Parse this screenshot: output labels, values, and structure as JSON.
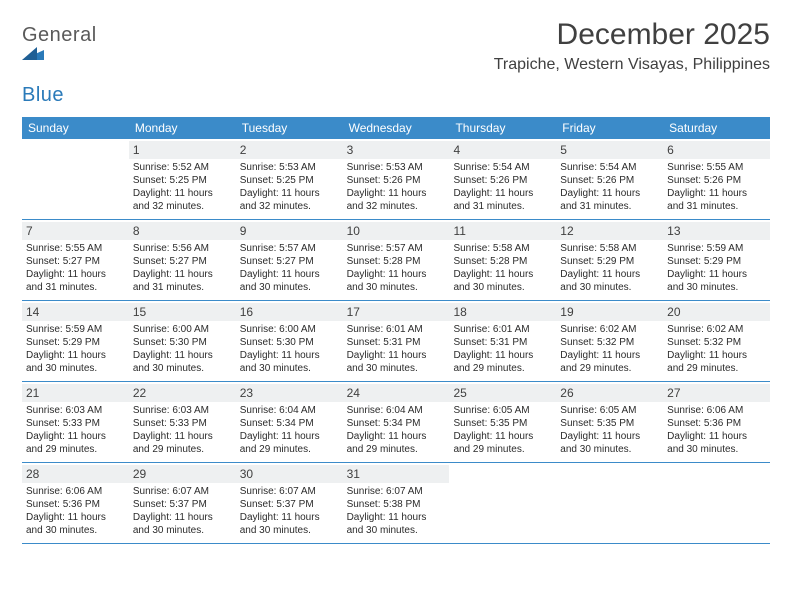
{
  "brand": {
    "name_a": "General",
    "name_b": "Blue"
  },
  "title": "December 2025",
  "location": "Trapiche, Western Visayas, Philippines",
  "colors": {
    "header_bg": "#3b8bc9",
    "header_text": "#ffffff",
    "daynum_bg": "#eef0f1",
    "body_text": "#2b2b2b",
    "rule": "#3b8bc9",
    "logo_gray": "#5a5a5a",
    "logo_blue": "#2a7ab9"
  },
  "weekdays": [
    "Sunday",
    "Monday",
    "Tuesday",
    "Wednesday",
    "Thursday",
    "Friday",
    "Saturday"
  ],
  "weeks": [
    [
      {
        "n": "",
        "sunrise": "",
        "sunset": "",
        "daylight": ""
      },
      {
        "n": "1",
        "sunrise": "5:52 AM",
        "sunset": "5:25 PM",
        "daylight": "11 hours and 32 minutes."
      },
      {
        "n": "2",
        "sunrise": "5:53 AM",
        "sunset": "5:25 PM",
        "daylight": "11 hours and 32 minutes."
      },
      {
        "n": "3",
        "sunrise": "5:53 AM",
        "sunset": "5:26 PM",
        "daylight": "11 hours and 32 minutes."
      },
      {
        "n": "4",
        "sunrise": "5:54 AM",
        "sunset": "5:26 PM",
        "daylight": "11 hours and 31 minutes."
      },
      {
        "n": "5",
        "sunrise": "5:54 AM",
        "sunset": "5:26 PM",
        "daylight": "11 hours and 31 minutes."
      },
      {
        "n": "6",
        "sunrise": "5:55 AM",
        "sunset": "5:26 PM",
        "daylight": "11 hours and 31 minutes."
      }
    ],
    [
      {
        "n": "7",
        "sunrise": "5:55 AM",
        "sunset": "5:27 PM",
        "daylight": "11 hours and 31 minutes."
      },
      {
        "n": "8",
        "sunrise": "5:56 AM",
        "sunset": "5:27 PM",
        "daylight": "11 hours and 31 minutes."
      },
      {
        "n": "9",
        "sunrise": "5:57 AM",
        "sunset": "5:27 PM",
        "daylight": "11 hours and 30 minutes."
      },
      {
        "n": "10",
        "sunrise": "5:57 AM",
        "sunset": "5:28 PM",
        "daylight": "11 hours and 30 minutes."
      },
      {
        "n": "11",
        "sunrise": "5:58 AM",
        "sunset": "5:28 PM",
        "daylight": "11 hours and 30 minutes."
      },
      {
        "n": "12",
        "sunrise": "5:58 AM",
        "sunset": "5:29 PM",
        "daylight": "11 hours and 30 minutes."
      },
      {
        "n": "13",
        "sunrise": "5:59 AM",
        "sunset": "5:29 PM",
        "daylight": "11 hours and 30 minutes."
      }
    ],
    [
      {
        "n": "14",
        "sunrise": "5:59 AM",
        "sunset": "5:29 PM",
        "daylight": "11 hours and 30 minutes."
      },
      {
        "n": "15",
        "sunrise": "6:00 AM",
        "sunset": "5:30 PM",
        "daylight": "11 hours and 30 minutes."
      },
      {
        "n": "16",
        "sunrise": "6:00 AM",
        "sunset": "5:30 PM",
        "daylight": "11 hours and 30 minutes."
      },
      {
        "n": "17",
        "sunrise": "6:01 AM",
        "sunset": "5:31 PM",
        "daylight": "11 hours and 30 minutes."
      },
      {
        "n": "18",
        "sunrise": "6:01 AM",
        "sunset": "5:31 PM",
        "daylight": "11 hours and 29 minutes."
      },
      {
        "n": "19",
        "sunrise": "6:02 AM",
        "sunset": "5:32 PM",
        "daylight": "11 hours and 29 minutes."
      },
      {
        "n": "20",
        "sunrise": "6:02 AM",
        "sunset": "5:32 PM",
        "daylight": "11 hours and 29 minutes."
      }
    ],
    [
      {
        "n": "21",
        "sunrise": "6:03 AM",
        "sunset": "5:33 PM",
        "daylight": "11 hours and 29 minutes."
      },
      {
        "n": "22",
        "sunrise": "6:03 AM",
        "sunset": "5:33 PM",
        "daylight": "11 hours and 29 minutes."
      },
      {
        "n": "23",
        "sunrise": "6:04 AM",
        "sunset": "5:34 PM",
        "daylight": "11 hours and 29 minutes."
      },
      {
        "n": "24",
        "sunrise": "6:04 AM",
        "sunset": "5:34 PM",
        "daylight": "11 hours and 29 minutes."
      },
      {
        "n": "25",
        "sunrise": "6:05 AM",
        "sunset": "5:35 PM",
        "daylight": "11 hours and 29 minutes."
      },
      {
        "n": "26",
        "sunrise": "6:05 AM",
        "sunset": "5:35 PM",
        "daylight": "11 hours and 30 minutes."
      },
      {
        "n": "27",
        "sunrise": "6:06 AM",
        "sunset": "5:36 PM",
        "daylight": "11 hours and 30 minutes."
      }
    ],
    [
      {
        "n": "28",
        "sunrise": "6:06 AM",
        "sunset": "5:36 PM",
        "daylight": "11 hours and 30 minutes."
      },
      {
        "n": "29",
        "sunrise": "6:07 AM",
        "sunset": "5:37 PM",
        "daylight": "11 hours and 30 minutes."
      },
      {
        "n": "30",
        "sunrise": "6:07 AM",
        "sunset": "5:37 PM",
        "daylight": "11 hours and 30 minutes."
      },
      {
        "n": "31",
        "sunrise": "6:07 AM",
        "sunset": "5:38 PM",
        "daylight": "11 hours and 30 minutes."
      },
      {
        "n": "",
        "sunrise": "",
        "sunset": "",
        "daylight": ""
      },
      {
        "n": "",
        "sunrise": "",
        "sunset": "",
        "daylight": ""
      },
      {
        "n": "",
        "sunrise": "",
        "sunset": "",
        "daylight": ""
      }
    ]
  ],
  "labels": {
    "sunrise": "Sunrise:",
    "sunset": "Sunset:",
    "daylight": "Daylight:"
  }
}
